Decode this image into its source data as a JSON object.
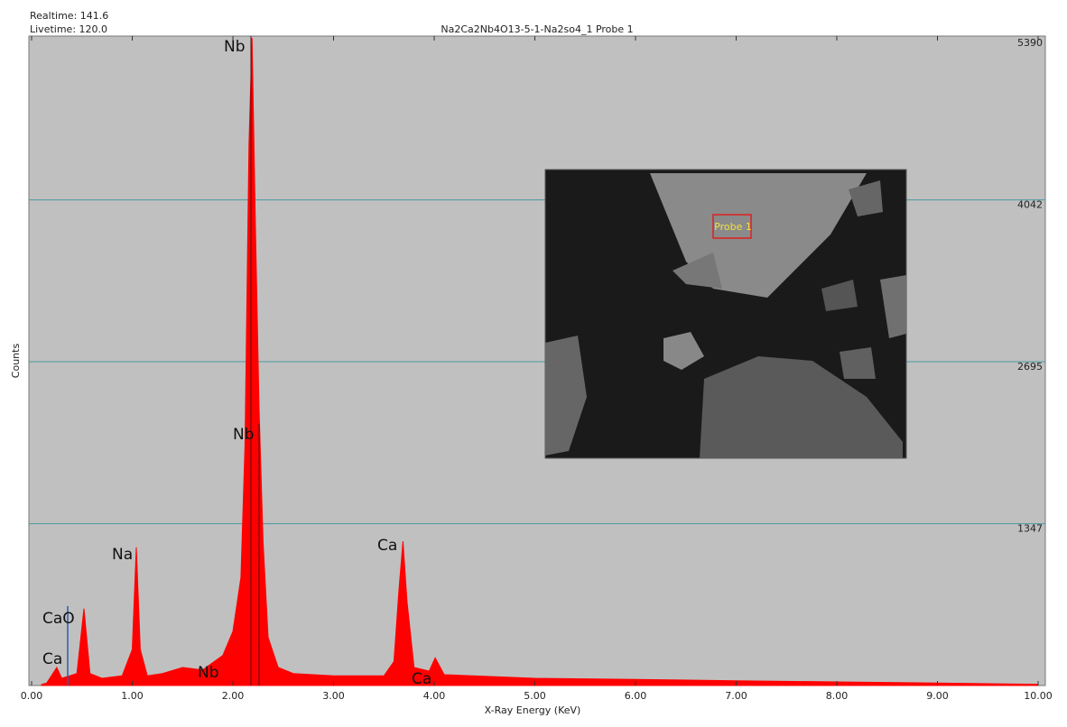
{
  "chart_data": {
    "type": "area",
    "title": "Na2Ca2Nb4O13-5-1-Na2so4_1 Probe 1",
    "realtime": "Realtime: 141.6",
    "livetime": "Livetime: 120.0",
    "x_label": "X-Ray Energy (KeV)",
    "y_label": "Counts",
    "inset_label": "Probe 1",
    "annotations": [
      "Nb",
      "Nb",
      "Na",
      "Ca",
      "CaO",
      "Ca",
      "Nb",
      "Ca"
    ],
    "xlim": [
      0,
      10
    ],
    "ylim": [
      0,
      5390
    ],
    "xticks": [
      {
        "value": 0,
        "label": "0.00"
      },
      {
        "value": 1,
        "label": "1.00"
      },
      {
        "value": 2,
        "label": "2.00"
      },
      {
        "value": 3,
        "label": "3.00"
      },
      {
        "value": 4,
        "label": "4.00"
      },
      {
        "value": 5,
        "label": "5.00"
      },
      {
        "value": 6,
        "label": "6.00"
      },
      {
        "value": 7,
        "label": "7.00"
      },
      {
        "value": 8,
        "label": "8.00"
      },
      {
        "value": 9,
        "label": "9.00"
      },
      {
        "value": 10,
        "label": "10.00"
      }
    ],
    "yticks": [
      1347,
      2695,
      4042,
      5390
    ],
    "grid": true,
    "color": "#ff0000",
    "x": [
      0.1,
      0.15,
      0.25,
      0.3,
      0.45,
      0.52,
      0.58,
      0.7,
      0.9,
      1.0,
      1.04,
      1.08,
      1.15,
      1.3,
      1.5,
      1.7,
      1.9,
      2.0,
      2.08,
      2.12,
      2.16,
      2.19,
      2.22,
      2.26,
      2.3,
      2.35,
      2.45,
      2.6,
      3.0,
      3.5,
      3.6,
      3.65,
      3.69,
      3.73,
      3.8,
      3.95,
      4.01,
      4.1,
      5.0,
      6.0,
      7.0,
      8.0,
      9.0,
      10.0
    ],
    "values": [
      10,
      20,
      150,
      60,
      100,
      640,
      100,
      60,
      80,
      300,
      1150,
      300,
      80,
      100,
      150,
      130,
      250,
      450,
      900,
      2000,
      4500,
      5390,
      4000,
      2300,
      1200,
      400,
      150,
      100,
      80,
      80,
      200,
      800,
      1200,
      700,
      150,
      120,
      230,
      90,
      60,
      50,
      40,
      30,
      20,
      10
    ]
  }
}
